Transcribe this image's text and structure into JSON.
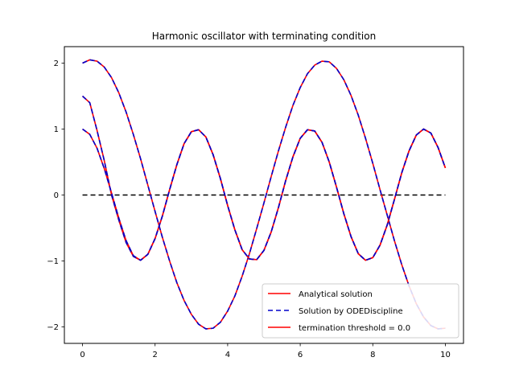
{
  "chart_data": {
    "type": "line",
    "title": "Harmonic oscillator with terminating condition",
    "xlabel": "",
    "ylabel": "",
    "xlim": [
      -0.5,
      10.5
    ],
    "ylim": [
      -2.25,
      2.25
    ],
    "x_ticks": [
      0,
      2,
      4,
      6,
      8,
      10
    ],
    "y_ticks": [
      -2,
      -1,
      0,
      1,
      2
    ],
    "x_tick_labels": [
      "0",
      "2",
      "4",
      "6",
      "8",
      "10"
    ],
    "y_tick_labels": [
      "−2",
      "−1",
      "0",
      "1",
      "2"
    ],
    "grid": false,
    "legend_position": "bottom-right",
    "legend": [
      {
        "label": "Analytical solution",
        "color": "#ff0000",
        "style": "solid"
      },
      {
        "label": "Solution by ODEDiscipline",
        "color": "#0000cc",
        "style": "dashed"
      },
      {
        "label": "termination threshold = 0.0",
        "color": "#ff0000",
        "style": "solid"
      }
    ],
    "x": [
      0,
      0.2,
      0.4,
      0.6,
      0.8,
      1.0,
      1.2,
      1.4,
      1.6,
      1.8,
      2.0,
      2.2,
      2.4,
      2.6,
      2.8,
      3.0,
      3.2,
      3.4,
      3.6,
      3.8,
      4.0,
      4.2,
      4.4,
      4.6,
      4.8,
      5.0,
      5.2,
      5.4,
      5.6,
      5.8,
      6.0,
      6.2,
      6.4,
      6.6,
      6.8,
      7.0,
      7.2,
      7.4,
      7.6,
      7.8,
      8.0,
      8.2,
      8.4,
      8.6,
      8.8,
      9.0,
      9.2,
      9.4,
      9.6,
      9.8,
      10.0
    ],
    "series": [
      {
        "role": "curve-a",
        "values": [
          2.0,
          2.05,
          2.03,
          1.94,
          1.78,
          1.55,
          1.26,
          0.92,
          0.55,
          0.15,
          -0.25,
          -0.64,
          -1.0,
          -1.33,
          -1.6,
          -1.81,
          -1.96,
          -2.03,
          -2.02,
          -1.93,
          -1.76,
          -1.53,
          -1.23,
          -0.89,
          -0.51,
          -0.12,
          0.28,
          0.67,
          1.03,
          1.36,
          1.63,
          1.84,
          1.97,
          2.03,
          2.02,
          1.92,
          1.75,
          1.51,
          1.21,
          0.86,
          0.48,
          0.08,
          -0.31,
          -0.7,
          -1.06,
          -1.38,
          -1.65,
          -1.85,
          -1.98,
          -2.03,
          -2.02
        ]
      },
      {
        "role": "curve-b",
        "values": [
          1.5,
          1.4,
          0.98,
          0.52,
          0.0,
          -0.38,
          -0.72,
          -0.93,
          -0.99,
          -0.9,
          -0.66,
          -0.32,
          0.08,
          0.46,
          0.78,
          0.96,
          0.99,
          0.88,
          0.61,
          0.25,
          -0.16,
          -0.53,
          -0.83,
          -0.97,
          -0.98,
          -0.84,
          -0.56,
          -0.19,
          0.22,
          0.58,
          0.86,
          0.99,
          0.97,
          0.8,
          0.5,
          0.12,
          -0.28,
          -0.63,
          -0.89,
          -0.99,
          -0.95,
          -0.76,
          -0.45,
          -0.06,
          0.34,
          0.67,
          0.91,
          1.0,
          0.94,
          0.72,
          0.41
        ]
      },
      {
        "role": "curve-c",
        "values": [
          1.0,
          0.92,
          0.71,
          0.4,
          0.03,
          -0.35,
          -0.69,
          -0.92,
          -0.99,
          -0.9,
          -0.66,
          -0.32,
          0.08,
          0.46,
          0.78,
          0.96,
          0.99,
          0.88,
          0.61,
          0.25,
          -0.16,
          -0.53,
          -0.83,
          -0.97,
          -0.98,
          -0.84,
          -0.56,
          -0.19,
          0.22,
          0.58,
          0.86,
          0.99,
          0.97,
          0.8,
          0.5,
          0.12,
          -0.28,
          -0.63,
          -0.89,
          -0.99,
          -0.95,
          -0.76,
          -0.45,
          -0.06,
          0.34,
          0.67,
          0.91,
          1.0,
          0.94,
          0.72,
          0.41
        ]
      }
    ],
    "threshold": {
      "value": 0.0,
      "x_range": [
        0,
        10
      ],
      "color": "#000000",
      "style": "dashed"
    }
  }
}
